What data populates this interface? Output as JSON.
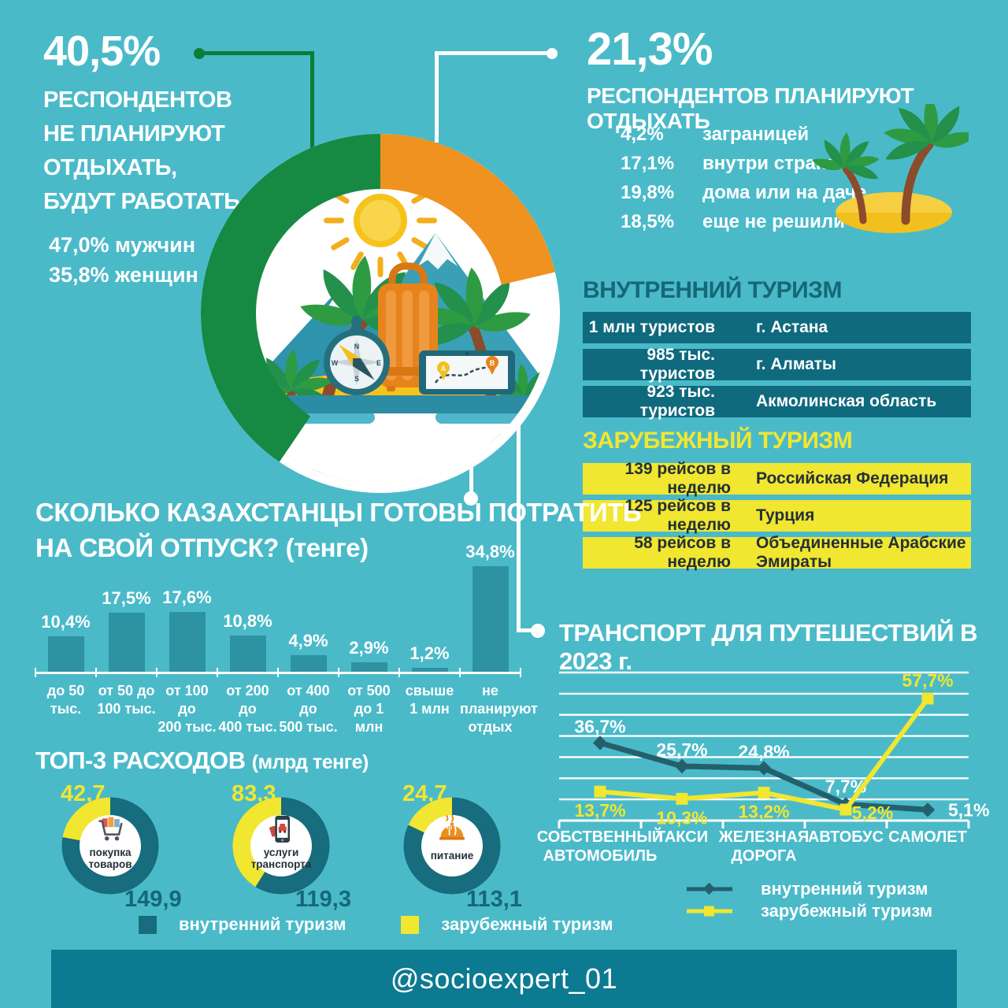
{
  "colors": {
    "background": "#4ABAC9",
    "dark_teal": "#0F6A7E",
    "heading_teal": "#156878",
    "bar_teal": "#2D92A2",
    "yellow": "#F1E630",
    "green": "#168943",
    "orange": "#EF921F",
    "line_dark": "#24606C",
    "footer": "#0C7A90"
  },
  "stat_left": {
    "value": "40,5%",
    "lines": [
      "РЕСПОНДЕНТОВ",
      "НЕ ПЛАНИРУЮТ",
      "ОТДЫХАТЬ,",
      "БУДУТ РАБОТАТЬ"
    ],
    "gender": [
      "47,0% мужчин",
      "35,8% женщин"
    ]
  },
  "stat_right": {
    "value": "21,3%",
    "subtitle": "РЕСПОНДЕНТОВ ПЛАНИРУЮТ ОТДЫХАТЬ",
    "items": [
      {
        "pct": "4,2%",
        "label": "заграницей"
      },
      {
        "pct": "17,1%",
        "label": "внутри страны"
      },
      {
        "pct": "19,8%",
        "label": "дома или на даче"
      },
      {
        "pct": "18,5%",
        "label": "еще не решили"
      }
    ]
  },
  "hero_donut": {
    "green_share": 40.5,
    "orange_share": 21.3
  },
  "domestic_tourism": {
    "title": "ВНУТРЕННИЙ ТУРИЗМ",
    "rows": [
      [
        "1 млн туристов",
        "г. Астана"
      ],
      [
        "985 тыс. туристов",
        "г. Алматы"
      ],
      [
        "923 тыс. туристов",
        "Акмолинская область"
      ]
    ]
  },
  "foreign_tourism": {
    "title": "ЗАРУБЕЖНЫЙ ТУРИЗМ",
    "rows": [
      [
        "139 рейсов в неделю",
        "Российская Федерация"
      ],
      [
        "125 рейсов в неделю",
        "Турция"
      ],
      [
        "58 рейсов в неделю",
        "Объединенные Арабские Эмираты"
      ]
    ]
  },
  "chart_data": [
    {
      "type": "bar",
      "title_line1": "СКОЛЬКО КАЗАХСТАНЦЫ ГОТОВЫ ПОТРАТИТЬ",
      "title_line2": "НА СВОЙ ОТПУСК? (тенге)",
      "categories": [
        [
          "до 50 тыс."
        ],
        [
          "от 50 до",
          "100 тыс."
        ],
        [
          "от 100 до",
          "200 тыс."
        ],
        [
          "от 200 до",
          "400 тыс."
        ],
        [
          "от 400 до",
          "500 тыс."
        ],
        [
          "от 500",
          "до 1 млн"
        ],
        [
          "свыше",
          "1 млн"
        ],
        [
          "не планируют",
          "отдых"
        ]
      ],
      "values": [
        10.4,
        17.5,
        17.6,
        10.8,
        4.9,
        2.9,
        1.2,
        34.8
      ],
      "labels": [
        "10,4%",
        "17,5%",
        "17,6%",
        "10,8%",
        "4,9%",
        "2,9%",
        "1,2%",
        "34,8%"
      ],
      "ylim": [
        0,
        40
      ],
      "grid": false
    },
    {
      "type": "line",
      "title": "ТРАНСПОРТ ДЛЯ ПУТЕШЕСТВИЙ В 2023 г.",
      "categories": [
        [
          "СОБСТВЕННЫЙ",
          "АВТОМОБИЛЬ"
        ],
        [
          "ТАКСИ"
        ],
        [
          "ЖЕЛЕЗНАЯ",
          "ДОРОГА"
        ],
        [
          "АВТОБУС"
        ],
        [
          "САМОЛЕТ"
        ]
      ],
      "ylim": [
        0,
        70
      ],
      "grid_step": 10,
      "grid": true,
      "legend_position": "bottom",
      "series": [
        {
          "name": "внутренний туризм",
          "marker": "diamond",
          "color": "#24606C",
          "values": [
            36.7,
            25.7,
            24.8,
            7.7,
            5.1
          ],
          "labels": [
            "36,7%",
            "25,7%",
            "24,8%",
            "7,7%",
            "5,1%"
          ]
        },
        {
          "name": "зарубежный туризм",
          "marker": "square",
          "color": "#F1E630",
          "values": [
            13.7,
            10.3,
            13.2,
            5.2,
            57.7
          ],
          "labels": [
            "13,7%",
            "10,3%",
            "13,2%",
            "5,2%",
            "57,7%"
          ]
        }
      ]
    },
    {
      "type": "donut-set",
      "title": "ТОП-3 РАСХОДОВ",
      "title_suffix": "(млрд тенге)",
      "legend": [
        {
          "label": "внутренний туризм",
          "color": "#176C7D"
        },
        {
          "label": "зарубежный туризм",
          "color": "#F1E630"
        }
      ],
      "items": [
        {
          "label": [
            "покупка",
            "товаров"
          ],
          "icon": "cart-icon",
          "foreign": 42.7,
          "foreign_label": "42,7",
          "domestic": 149.9,
          "domestic_label": "149,9"
        },
        {
          "label": [
            "услуги",
            "транспорта"
          ],
          "icon": "phone-icon",
          "foreign": 83.3,
          "foreign_label": "83,3",
          "domestic": 119.3,
          "domestic_label": "119,3"
        },
        {
          "label": [
            "питание"
          ],
          "icon": "food-icon",
          "foreign": 24.7,
          "foreign_label": "24,7",
          "domestic": 113.1,
          "domestic_label": "113,1"
        }
      ]
    }
  ],
  "footer": {
    "handle": "@socioexpert_01"
  }
}
